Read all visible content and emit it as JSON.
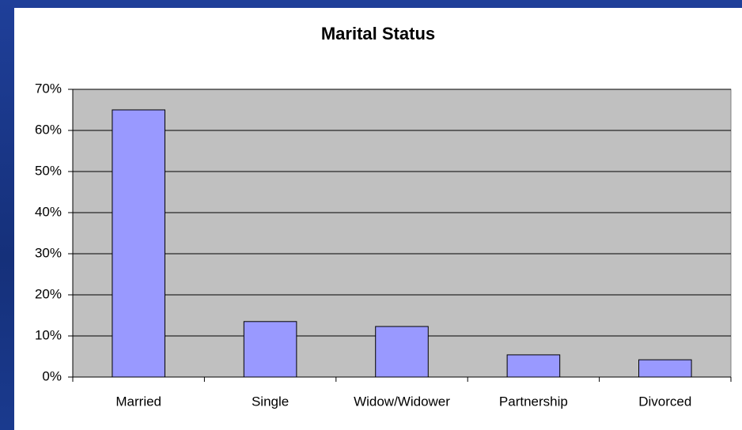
{
  "chart_data": {
    "type": "bar",
    "title": "Marital Status",
    "categories": [
      "Married",
      "Single",
      "Widow/Widower",
      "Partnership",
      "Divorced"
    ],
    "values": [
      65,
      13.5,
      12.3,
      5.4,
      4.2
    ],
    "color": "#9999ff",
    "ylim": [
      0,
      70
    ],
    "yticks": [
      {
        "value": 0,
        "label": "0%"
      },
      {
        "value": 10,
        "label": "10%"
      },
      {
        "value": 20,
        "label": "20%"
      },
      {
        "value": 30,
        "label": "30%"
      },
      {
        "value": 40,
        "label": "40%"
      },
      {
        "value": 50,
        "label": "50%"
      },
      {
        "value": 60,
        "label": "60%"
      },
      {
        "value": 70,
        "label": "70%"
      }
    ],
    "grid": true
  }
}
